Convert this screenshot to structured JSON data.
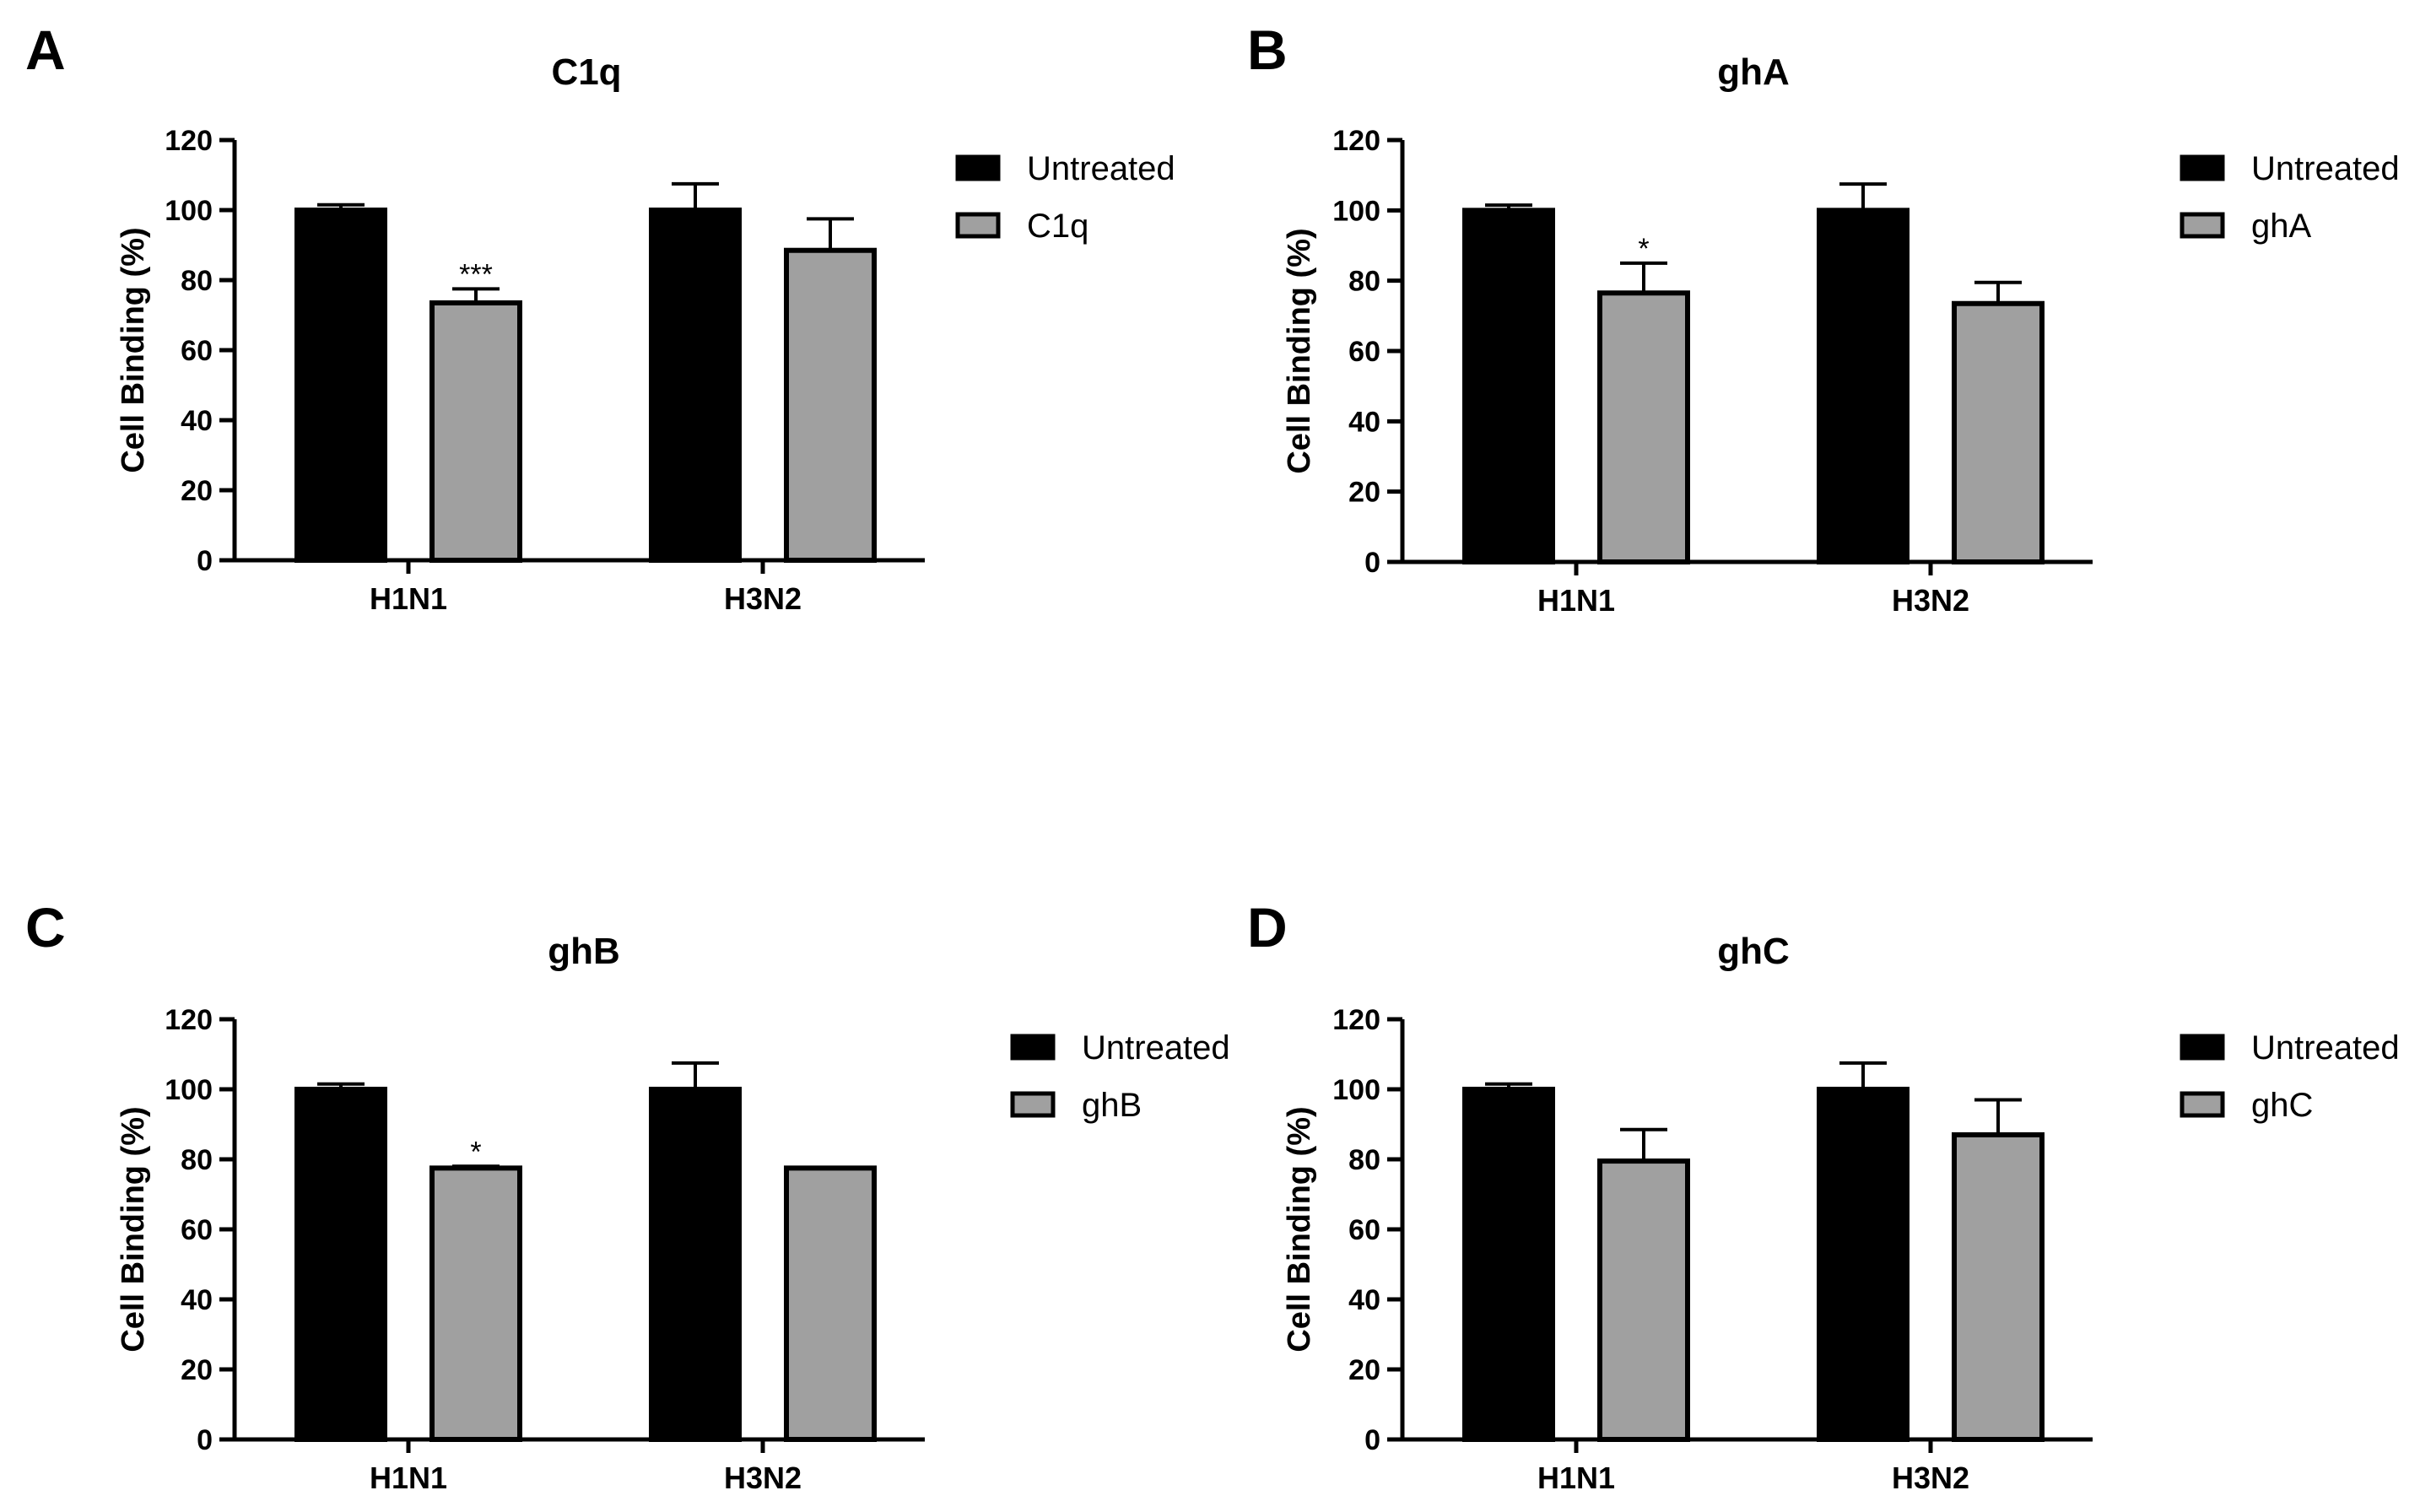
{
  "colors": {
    "untreated": "#000000",
    "treated": "#a0a0a0",
    "axis": "#000000"
  },
  "chart_data": [
    {
      "panel": "A",
      "type": "bar",
      "title": "C1q",
      "ylabel": "Cell Binding (%)",
      "xlabel": "",
      "ylim": [
        0,
        120
      ],
      "yticks": [
        0,
        20,
        40,
        60,
        80,
        100,
        120
      ],
      "categories": [
        "H1N1",
        "H3N2"
      ],
      "legend_position": "right",
      "series": [
        {
          "name": "Untreated",
          "values": [
            100,
            100
          ],
          "errors": [
            1.5,
            7.5
          ]
        },
        {
          "name": "C1q",
          "values": [
            73.5,
            88.5
          ],
          "errors": [
            4,
            9
          ]
        }
      ],
      "annotations": [
        {
          "text": "***",
          "series": 1,
          "category": 0
        }
      ]
    },
    {
      "panel": "B",
      "type": "bar",
      "title": "ghA",
      "ylabel": "Cell Binding (%)",
      "xlabel": "",
      "ylim": [
        0,
        120
      ],
      "yticks": [
        0,
        20,
        40,
        60,
        80,
        100,
        120
      ],
      "categories": [
        "H1N1",
        "H3N2"
      ],
      "legend_position": "right",
      "series": [
        {
          "name": "Untreated",
          "values": [
            100,
            100
          ],
          "errors": [
            1.5,
            7.5
          ]
        },
        {
          "name": "ghA",
          "values": [
            76.5,
            73.5
          ],
          "errors": [
            8.5,
            6
          ]
        }
      ],
      "annotations": [
        {
          "text": "*",
          "series": 1,
          "category": 0
        }
      ]
    },
    {
      "panel": "C",
      "type": "bar",
      "title": "ghB",
      "ylabel": "Cell Binding (%)",
      "xlabel": "",
      "ylim": [
        0,
        120
      ],
      "yticks": [
        0,
        20,
        40,
        60,
        80,
        100,
        120
      ],
      "categories": [
        "H1N1",
        "H3N2"
      ],
      "legend_position": "right",
      "series": [
        {
          "name": "Untreated",
          "values": [
            100,
            100
          ],
          "errors": [
            1.5,
            7.5
          ]
        },
        {
          "name": "ghB",
          "values": [
            77.5,
            77.5
          ],
          "errors": [
            0.5,
            0
          ]
        }
      ],
      "annotations": [
        {
          "text": "*",
          "series": 1,
          "category": 0
        }
      ]
    },
    {
      "panel": "D",
      "type": "bar",
      "title": "ghC",
      "ylabel": "Cell Binding (%)",
      "xlabel": "",
      "ylim": [
        0,
        120
      ],
      "yticks": [
        0,
        20,
        40,
        60,
        80,
        100,
        120
      ],
      "categories": [
        "H1N1",
        "H3N2"
      ],
      "legend_position": "right",
      "series": [
        {
          "name": "Untreated",
          "values": [
            100,
            100
          ],
          "errors": [
            1.5,
            7.5
          ]
        },
        {
          "name": "ghC",
          "values": [
            79.5,
            87
          ],
          "errors": [
            9,
            10
          ]
        }
      ],
      "annotations": []
    }
  ]
}
